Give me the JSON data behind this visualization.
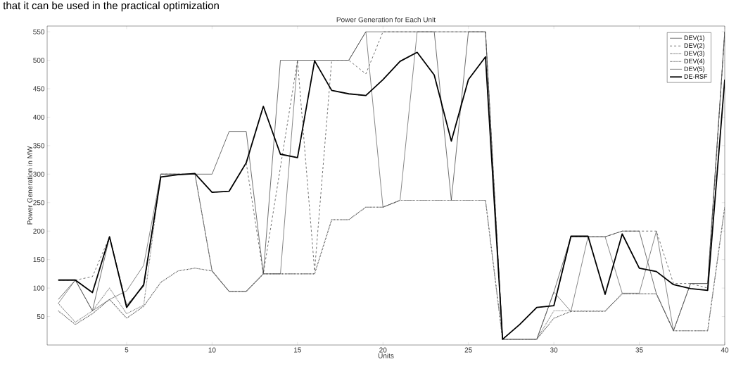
{
  "chart_data": {
    "type": "line",
    "title": "Power Generation for Each Unit",
    "xlabel": "Units",
    "ylabel": "Power Generation in MW",
    "annotations": [
      "that it can be used in the practical optimization"
    ],
    "x": [
      1,
      2,
      3,
      4,
      5,
      6,
      7,
      8,
      9,
      10,
      11,
      12,
      13,
      14,
      15,
      16,
      17,
      18,
      19,
      20,
      21,
      22,
      23,
      24,
      25,
      26,
      27,
      28,
      29,
      30,
      31,
      32,
      33,
      34,
      35,
      36,
      37,
      38,
      39,
      40
    ],
    "xlim": [
      0.35,
      40
    ],
    "ylim": [
      0,
      560
    ],
    "xticks": [
      5,
      10,
      15,
      20,
      25,
      30,
      35,
      40
    ],
    "yticks": [
      50,
      100,
      150,
      200,
      250,
      300,
      350,
      400,
      450,
      500,
      550
    ],
    "legend": "top right",
    "grid": false,
    "series": [
      {
        "name": "DEV(1)",
        "color": "#333333",
        "line_style": "solid",
        "values": [
          80,
          114,
          60,
          190,
          70,
          103,
          300,
          300,
          300,
          300,
          375,
          375,
          125,
          500,
          500,
          500,
          500,
          500,
          550,
          550,
          550,
          550,
          550,
          254,
          550,
          550,
          10,
          10,
          10,
          93,
          190,
          190,
          190,
          200,
          200,
          90,
          25,
          108,
          108,
          550
        ]
      },
      {
        "name": "DEV(2)",
        "color": "#333333",
        "line_style": "dashed",
        "values": [
          114,
          114,
          120,
          190,
          70,
          103,
          300,
          300,
          300,
          268,
          270,
          320,
          125,
          312,
          500,
          130,
          500,
          500,
          476,
          550,
          550,
          550,
          550,
          550,
          550,
          550,
          10,
          36,
          66,
          69,
          190,
          190,
          190,
          200,
          200,
          200,
          108,
          108,
          100,
          550
        ]
      },
      {
        "name": "DEV(3)",
        "color": "#444444",
        "line_style": "dotted",
        "values": [
          60,
          36,
          55,
          80,
          47,
          68,
          110,
          130,
          135,
          130,
          94,
          94,
          125,
          125,
          125,
          125,
          220,
          220,
          242,
          242,
          254,
          254,
          254,
          254,
          254,
          254,
          10,
          10,
          10,
          47,
          59,
          59,
          59,
          90,
          90,
          90,
          25,
          25,
          25,
          242
        ]
      },
      {
        "name": "DEV(4)",
        "color": "#777777",
        "line_style": "dotted",
        "values": [
          73,
          40,
          60,
          100,
          55,
          70,
          300,
          300,
          300,
          130,
          94,
          94,
          125,
          125,
          125,
          125,
          220,
          220,
          242,
          242,
          254,
          254,
          254,
          254,
          254,
          254,
          10,
          10,
          10,
          60,
          60,
          60,
          60,
          90,
          90,
          90,
          25,
          25,
          25,
          242
        ]
      },
      {
        "name": "DEV(5)",
        "color": "#555555",
        "line_style": "solid",
        "values": [
          73,
          114,
          60,
          80,
          95,
          140,
          300,
          300,
          300,
          130,
          94,
          94,
          125,
          125,
          500,
          500,
          500,
          500,
          550,
          242,
          254,
          550,
          550,
          550,
          550,
          550,
          10,
          10,
          10,
          93,
          59,
          190,
          190,
          91,
          91,
          200,
          25,
          108,
          108,
          550
        ]
      },
      {
        "name": "DE-RSF",
        "color": "#000000",
        "line_style": "solid",
        "values": [
          114,
          114,
          92,
          190,
          66,
          106,
          295,
          299,
          301,
          268,
          270,
          320,
          419,
          335,
          329,
          499,
          447,
          441,
          438,
          466,
          498,
          514,
          474,
          358,
          466,
          506,
          10,
          36,
          66,
          69,
          191,
          191,
          89,
          195,
          135,
          129,
          106,
          99,
          96,
          466
        ]
      }
    ]
  }
}
